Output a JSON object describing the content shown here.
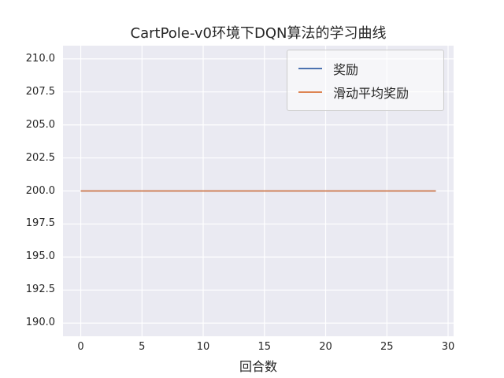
{
  "chart_data": {
    "type": "line",
    "title": "CartPole-v0环境下DQN算法的学习曲线",
    "xlabel": "回合数",
    "ylabel": "",
    "xlim": [
      -1.45,
      30.45
    ],
    "ylim": [
      189,
      211
    ],
    "x_ticks": [
      0,
      5,
      10,
      15,
      20,
      25,
      30
    ],
    "y_ticks": [
      190.0,
      192.5,
      195.0,
      197.5,
      200.0,
      202.5,
      205.0,
      207.5,
      210.0
    ],
    "grid": true,
    "grid_color": "#ffffff",
    "plot_background": "#eaeaf2",
    "legend_position": "upper right",
    "series": [
      {
        "name": "奖励",
        "color": "#4c72b0",
        "x": [
          0,
          1,
          2,
          3,
          4,
          5,
          6,
          7,
          8,
          9,
          10,
          11,
          12,
          13,
          14,
          15,
          16,
          17,
          18,
          19,
          20,
          21,
          22,
          23,
          24,
          25,
          26,
          27,
          28,
          29
        ],
        "values": [
          200,
          200,
          200,
          200,
          200,
          200,
          200,
          200,
          200,
          200,
          200,
          200,
          200,
          200,
          200,
          200,
          200,
          200,
          200,
          200,
          200,
          200,
          200,
          200,
          200,
          200,
          200,
          200,
          200,
          200
        ]
      },
      {
        "name": "滑动平均奖励",
        "color": "#dd8452",
        "x": [
          0,
          1,
          2,
          3,
          4,
          5,
          6,
          7,
          8,
          9,
          10,
          11,
          12,
          13,
          14,
          15,
          16,
          17,
          18,
          19,
          20,
          21,
          22,
          23,
          24,
          25,
          26,
          27,
          28,
          29
        ],
        "values": [
          200,
          200,
          200,
          200,
          200,
          200,
          200,
          200,
          200,
          200,
          200,
          200,
          200,
          200,
          200,
          200,
          200,
          200,
          200,
          200,
          200,
          200,
          200,
          200,
          200,
          200,
          200,
          200,
          200,
          200
        ]
      }
    ]
  }
}
